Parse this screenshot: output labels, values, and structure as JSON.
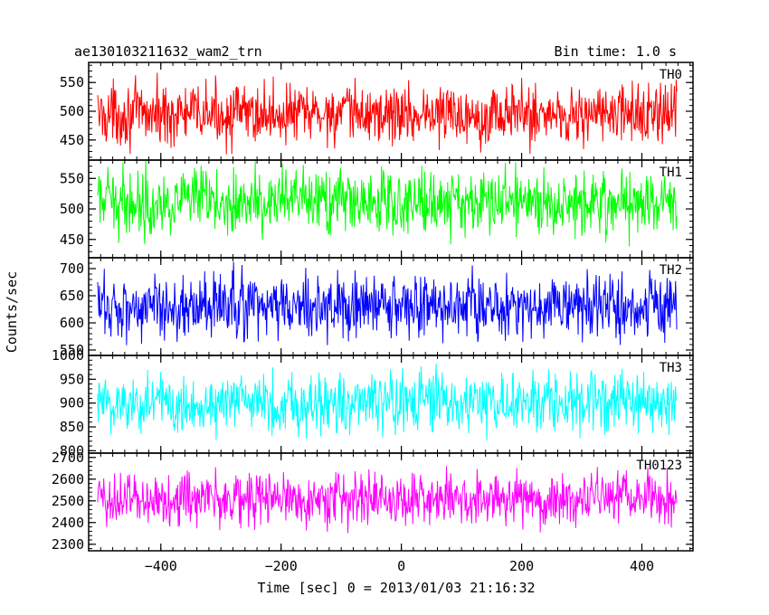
{
  "header": {
    "title": "ae130103211632_wam2_trn",
    "bin_time": "Bin time: 1.0 s"
  },
  "chart_data": {
    "type": "line",
    "xlabel": "Time [sec] 0 = 2013/01/03 21:16:32",
    "ylabel": "Counts/sec",
    "xlim": [
      -520,
      485
    ],
    "data_x_range": [
      -505,
      458
    ],
    "x_ticks": [
      {
        "value": -400,
        "label": "−400"
      },
      {
        "value": -200,
        "label": "−200"
      },
      {
        "value": 0,
        "label": "0"
      },
      {
        "value": 200,
        "label": "200"
      },
      {
        "value": 400,
        "label": "400"
      }
    ],
    "panels": [
      {
        "name": "TH0",
        "color": "#ff0000",
        "ylim": [
          415,
          585
        ],
        "mean": 495,
        "sd": 26,
        "yticks": [
          {
            "value": 450,
            "label": "450"
          },
          {
            "value": 500,
            "label": "500"
          },
          {
            "value": 550,
            "label": "550"
          }
        ]
      },
      {
        "name": "TH1",
        "color": "#00ff00",
        "ylim": [
          420,
          580
        ],
        "mean": 512,
        "sd": 26,
        "yticks": [
          {
            "value": 450,
            "label": "450"
          },
          {
            "value": 500,
            "label": "500"
          },
          {
            "value": 550,
            "label": "550"
          }
        ]
      },
      {
        "name": "TH2",
        "color": "#0000ff",
        "ylim": [
          540,
          720
        ],
        "mean": 630,
        "sd": 30,
        "yticks": [
          {
            "value": 550,
            "label": "550"
          },
          {
            "value": 600,
            "label": "600"
          },
          {
            "value": 650,
            "label": "650"
          },
          {
            "value": 700,
            "label": "700"
          }
        ]
      },
      {
        "name": "TH3",
        "color": "#00ffff",
        "ylim": [
          795,
          1000
        ],
        "mean": 900,
        "sd": 32,
        "yticks": [
          {
            "value": 800,
            "label": "800"
          },
          {
            "value": 850,
            "label": "850"
          },
          {
            "value": 900,
            "label": "900"
          },
          {
            "value": 950,
            "label": "950"
          },
          {
            "value": 1000,
            "label": "1000"
          }
        ]
      },
      {
        "name": "TH0123",
        "color": "#ff00ff",
        "ylim": [
          2270,
          2720
        ],
        "mean": 2510,
        "sd": 62,
        "yticks": [
          {
            "value": 2300,
            "label": "2300"
          },
          {
            "value": 2400,
            "label": "2400"
          },
          {
            "value": 2500,
            "label": "2500"
          },
          {
            "value": 2600,
            "label": "2600"
          },
          {
            "value": 2700,
            "label": "2700"
          }
        ]
      }
    ]
  }
}
